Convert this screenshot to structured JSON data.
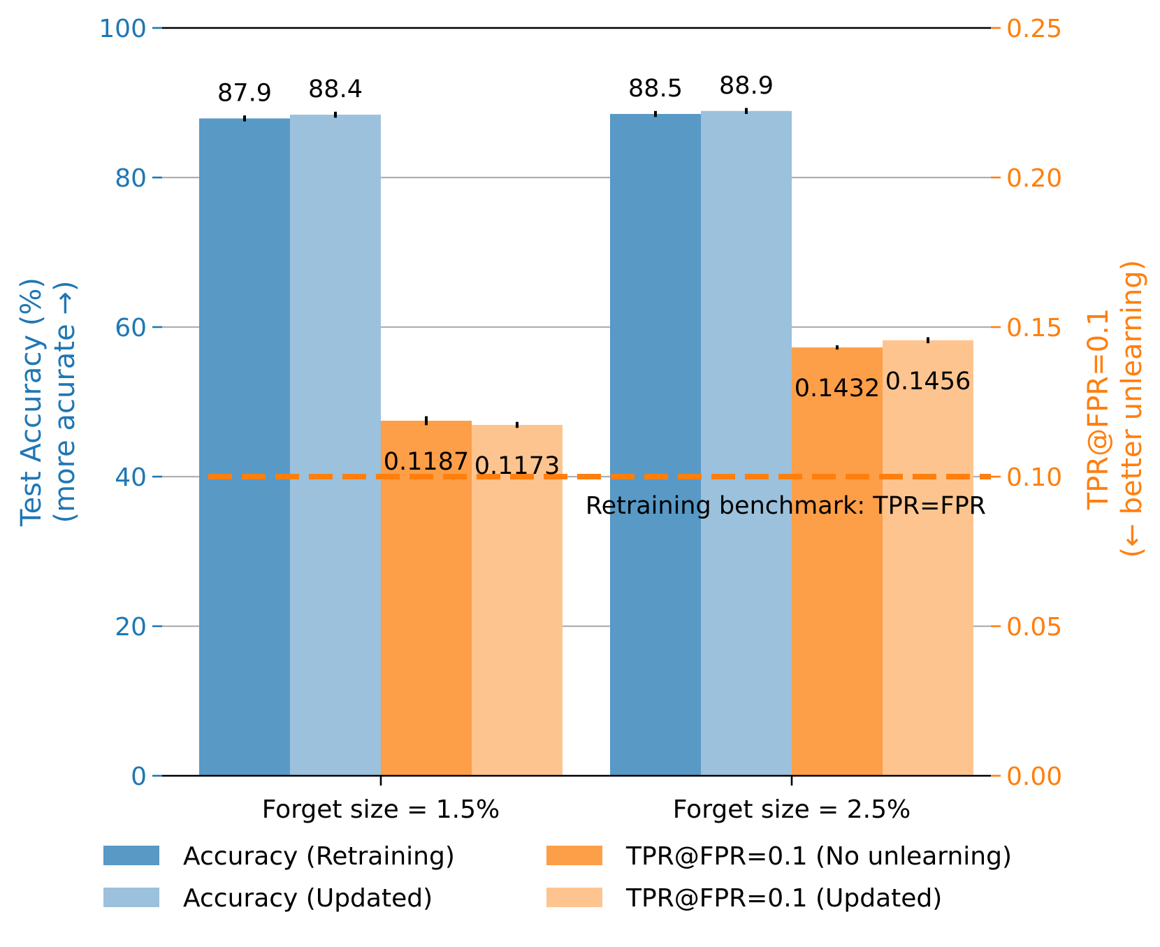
{
  "chart_data": {
    "type": "bar",
    "categories": [
      "Forget size = 1.5%",
      "Forget size = 2.5%"
    ],
    "left_axis": {
      "label_line1": "Test Accuracy (%)",
      "label_line2": "(more acurate →)",
      "ylim": [
        0,
        100
      ],
      "ticks": [
        "0",
        "20",
        "40",
        "60",
        "80",
        "100"
      ],
      "color": "#1f77b4"
    },
    "right_axis": {
      "label_line1": "TPR@FPR=0.1",
      "label_line2": "(← better unlearning)",
      "ylim": [
        0,
        0.25
      ],
      "ticks": [
        "0.00",
        "0.05",
        "0.10",
        "0.15",
        "0.20",
        "0.25"
      ],
      "color": "#ff7f0e"
    },
    "series": [
      {
        "name": "Accuracy (Retraining)",
        "axis": "left",
        "values": [
          87.9,
          88.5
        ],
        "labels": [
          "87.9",
          "88.5"
        ],
        "errors": [
          0.4,
          0.4
        ],
        "color": "#5899c6"
      },
      {
        "name": "Accuracy (Updated)",
        "axis": "left",
        "values": [
          88.4,
          88.9
        ],
        "labels": [
          "88.4",
          "88.9"
        ],
        "errors": [
          0.4,
          0.4
        ],
        "color": "#9bc1dd"
      },
      {
        "name": "TPR@FPR=0.1 (No unlearning)",
        "axis": "right",
        "values": [
          0.1187,
          0.1432
        ],
        "labels": [
          "0.1187",
          "0.1432"
        ],
        "errors": [
          0.0015,
          0.0002
        ],
        "color": "#fd9e48"
      },
      {
        "name": "TPR@FPR=0.1 (Updated)",
        "axis": "right",
        "values": [
          0.1173,
          0.1456
        ],
        "labels": [
          "0.1173",
          "0.1456"
        ],
        "errors": [
          0.001,
          0.001
        ],
        "color": "#fec48f"
      }
    ],
    "reference_line": {
      "axis": "right",
      "value": 0.1,
      "label": "Retraining benchmark: TPR=FPR",
      "color": "#ff7f0e",
      "style": "dashed"
    },
    "grid": true,
    "legend": {
      "position": "bottom",
      "columns": 2
    }
  }
}
